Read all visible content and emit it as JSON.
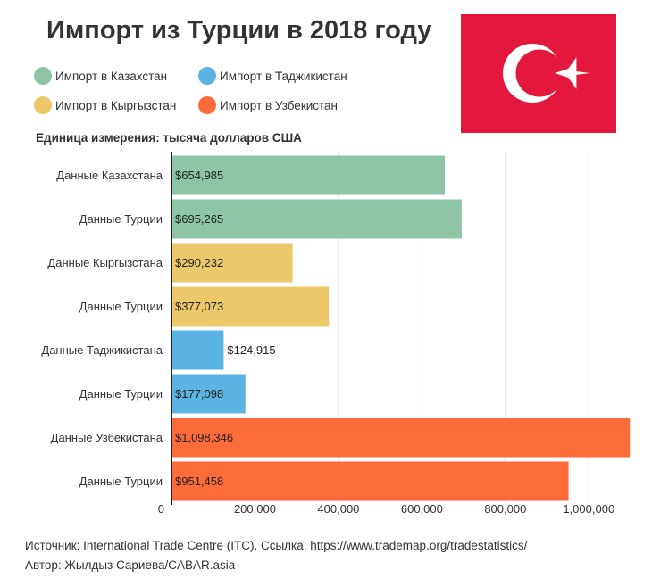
{
  "title": "Импорт из Турции в 2018 году",
  "unit_label": "Единица измерения: тысяча долларов США",
  "legend": [
    {
      "label": "Импорт в Казахстан",
      "color": "#8dc5a6"
    },
    {
      "label": "Импорт в Таджикистан",
      "color": "#5bb3e3"
    },
    {
      "label": "Импорт в Кыргызстан",
      "color": "#ecc86b"
    },
    {
      "label": "Импорт в Узбекистан",
      "color": "#fe6b3b"
    }
  ],
  "flag": {
    "bg": "#e4173e",
    "fg": "#ffffff",
    "icon": "turkey-flag"
  },
  "chart_data": {
    "type": "bar",
    "orientation": "horizontal",
    "categories": [
      "Данные Казахстана",
      "Данные Турции",
      "Данные Кыргызстана",
      "Данные Турции",
      "Данные Таджикистана",
      "Данные Турции",
      "Данные Узбекистана",
      "Данные Турции"
    ],
    "values": [
      654985,
      695265,
      290232,
      377073,
      124915,
      177098,
      1098346,
      951458
    ],
    "value_labels": [
      "$654,985",
      "$695,265",
      "$290,232",
      "$377,073",
      "$124,915",
      "$177,098",
      "$1,098,346",
      "$951,458"
    ],
    "colors": [
      "#8dc5a6",
      "#8dc5a6",
      "#ecc86b",
      "#ecc86b",
      "#5bb3e3",
      "#5bb3e3",
      "#fe6b3b",
      "#fe6b3b"
    ],
    "x_ticks": [
      0,
      200000,
      400000,
      600000,
      800000,
      1000000
    ],
    "x_tick_labels": [
      "0",
      "200,000",
      "400,000",
      "600,000",
      "800,000",
      "1,000,000"
    ],
    "xlim": [
      0,
      1100000
    ],
    "grid": true
  },
  "footer": {
    "source": "Источник: International Trade Centre (ITC). Ссылка: https://www.trademap.org/tradestatistics/",
    "author": "Автор: Жылдыз Сариева/CABAR.asia"
  }
}
